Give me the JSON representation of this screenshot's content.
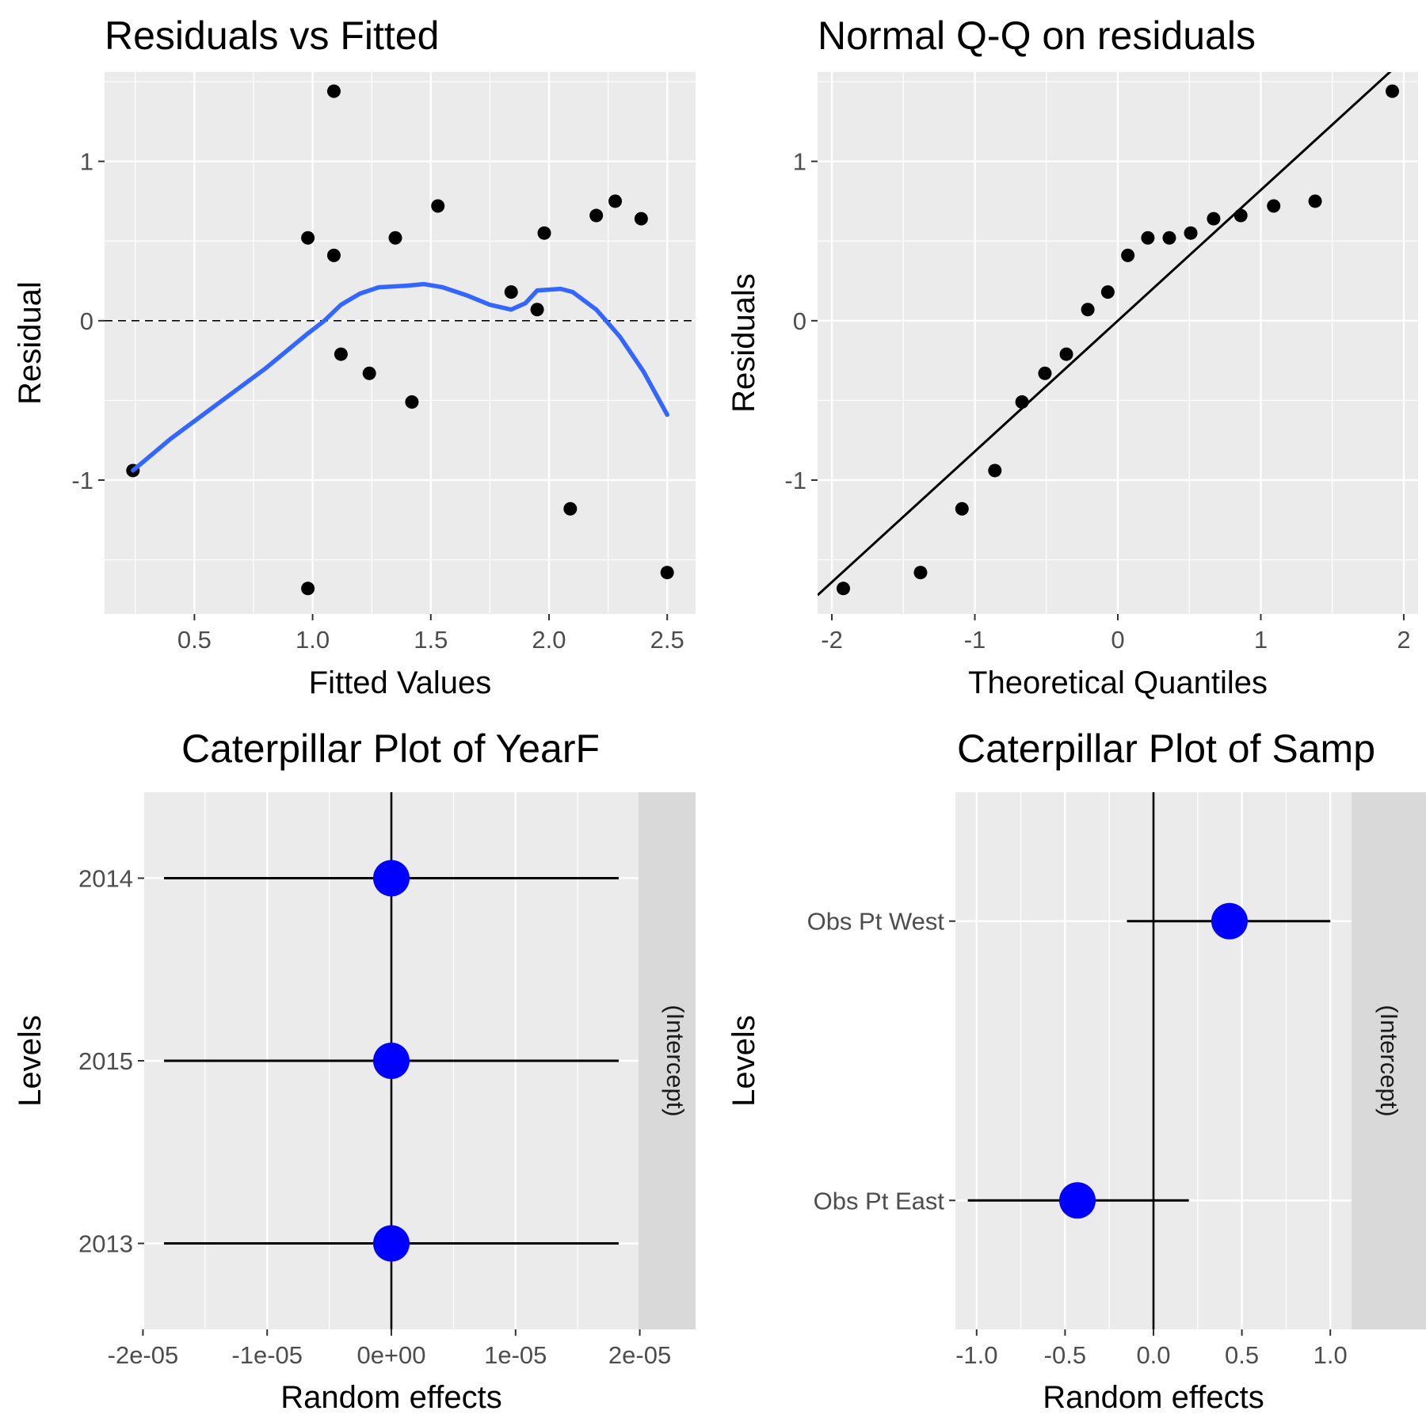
{
  "chart_data": [
    {
      "type": "scatter",
      "title": "Residuals vs Fitted",
      "xlabel": "Fitted Values",
      "ylabel": "Residual",
      "xlim": [
        0.12,
        2.62
      ],
      "ylim": [
        -1.84,
        1.56
      ],
      "xticks": [
        0.5,
        1.0,
        1.5,
        2.0,
        2.5
      ],
      "xtick_labels": [
        "0.5",
        "1.0",
        "1.5",
        "2.0",
        "2.5"
      ],
      "yticks": [
        -1,
        0,
        1
      ],
      "ytick_labels": [
        "-1",
        "0",
        "1"
      ],
      "grid": true,
      "reference_line": {
        "y": 0,
        "style": "dashed",
        "color": "#000000"
      },
      "point_color": "#000000",
      "smooth_color": "#3366ff",
      "points": [
        {
          "x": 0.24,
          "y": -0.94
        },
        {
          "x": 0.98,
          "y": 0.52
        },
        {
          "x": 0.98,
          "y": -1.68
        },
        {
          "x": 1.09,
          "y": 1.44
        },
        {
          "x": 1.09,
          "y": 0.41
        },
        {
          "x": 1.12,
          "y": -0.21
        },
        {
          "x": 1.24,
          "y": -0.33
        },
        {
          "x": 1.35,
          "y": 0.52
        },
        {
          "x": 1.42,
          "y": -0.51
        },
        {
          "x": 1.53,
          "y": 0.72
        },
        {
          "x": 1.84,
          "y": 0.18
        },
        {
          "x": 1.95,
          "y": 0.07
        },
        {
          "x": 1.98,
          "y": 0.55
        },
        {
          "x": 2.09,
          "y": -1.18
        },
        {
          "x": 2.2,
          "y": 0.66
        },
        {
          "x": 2.28,
          "y": 0.75
        },
        {
          "x": 2.39,
          "y": 0.64
        },
        {
          "x": 2.5,
          "y": -1.58
        }
      ],
      "smooth": [
        {
          "x": 0.24,
          "y": -0.94
        },
        {
          "x": 0.4,
          "y": -0.74
        },
        {
          "x": 0.6,
          "y": -0.52
        },
        {
          "x": 0.8,
          "y": -0.3
        },
        {
          "x": 0.98,
          "y": -0.08
        },
        {
          "x": 1.05,
          "y": 0.0
        },
        {
          "x": 1.12,
          "y": 0.1
        },
        {
          "x": 1.2,
          "y": 0.17
        },
        {
          "x": 1.28,
          "y": 0.21
        },
        {
          "x": 1.4,
          "y": 0.22
        },
        {
          "x": 1.47,
          "y": 0.23
        },
        {
          "x": 1.55,
          "y": 0.21
        },
        {
          "x": 1.65,
          "y": 0.16
        },
        {
          "x": 1.75,
          "y": 0.1
        },
        {
          "x": 1.84,
          "y": 0.07
        },
        {
          "x": 1.9,
          "y": 0.11
        },
        {
          "x": 1.95,
          "y": 0.19
        },
        {
          "x": 2.05,
          "y": 0.2
        },
        {
          "x": 2.1,
          "y": 0.18
        },
        {
          "x": 2.2,
          "y": 0.07
        },
        {
          "x": 2.3,
          "y": -0.1
        },
        {
          "x": 2.4,
          "y": -0.32
        },
        {
          "x": 2.5,
          "y": -0.59
        }
      ]
    },
    {
      "type": "scatter",
      "title": "Normal Q-Q on residuals",
      "xlabel": "Theoretical Quantiles",
      "ylabel": "Residuals",
      "xlim": [
        -2.1,
        2.1
      ],
      "ylim": [
        -1.84,
        1.56
      ],
      "xticks": [
        -2,
        -1,
        0,
        1,
        2
      ],
      "xtick_labels": [
        "-2",
        "-1",
        "0",
        "1",
        "2"
      ],
      "yticks": [
        -1,
        0,
        1
      ],
      "ytick_labels": [
        "-1",
        "0",
        "1"
      ],
      "grid": true,
      "point_color": "#000000",
      "line": {
        "intercept": 0.0,
        "slope": 0.82,
        "color": "#000000"
      },
      "points": [
        {
          "x": -1.92,
          "y": -1.68
        },
        {
          "x": -1.38,
          "y": -1.58
        },
        {
          "x": -1.09,
          "y": -1.18
        },
        {
          "x": -0.86,
          "y": -0.94
        },
        {
          "x": -0.67,
          "y": -0.51
        },
        {
          "x": -0.51,
          "y": -0.33
        },
        {
          "x": -0.36,
          "y": -0.21
        },
        {
          "x": -0.21,
          "y": 0.07
        },
        {
          "x": -0.07,
          "y": 0.18
        },
        {
          "x": 0.07,
          "y": 0.41
        },
        {
          "x": 0.21,
          "y": 0.52
        },
        {
          "x": 0.36,
          "y": 0.52
        },
        {
          "x": 0.51,
          "y": 0.55
        },
        {
          "x": 0.67,
          "y": 0.64
        },
        {
          "x": 0.86,
          "y": 0.66
        },
        {
          "x": 1.09,
          "y": 0.72
        },
        {
          "x": 1.38,
          "y": 0.75
        },
        {
          "x": 1.92,
          "y": 1.44
        }
      ]
    },
    {
      "type": "scatter",
      "title": "Caterpillar Plot of  YearF",
      "xlabel": "Random effects",
      "ylabel": "Levels",
      "strip_label": "(Intercept)",
      "xlim": [
        -1.99e-05,
        1.99e-05
      ],
      "xticks": [
        -2e-05,
        -1e-05,
        0,
        1e-05,
        2e-05
      ],
      "xtick_labels": [
        "-2e-05",
        "-1e-05",
        "0e+00",
        "1e-05",
        "2e-05"
      ],
      "categories": [
        "2013",
        "2015",
        "2014"
      ],
      "grid": true,
      "reference_line": {
        "x": 0,
        "color": "#000000"
      },
      "point_color": "#0000ff",
      "points": [
        {
          "level": "2013",
          "x": 0,
          "lo": -1.83e-05,
          "hi": 1.83e-05
        },
        {
          "level": "2015",
          "x": 0,
          "lo": -1.83e-05,
          "hi": 1.83e-05
        },
        {
          "level": "2014",
          "x": 0,
          "lo": -1.83e-05,
          "hi": 1.83e-05
        }
      ]
    },
    {
      "type": "scatter",
      "title": "Caterpillar Plot of  Samp",
      "xlabel": "Random effects",
      "ylabel": "Levels",
      "strip_label": "(Intercept)",
      "xlim": [
        -1.12,
        1.12
      ],
      "xticks": [
        -1.0,
        -0.5,
        0.0,
        0.5,
        1.0
      ],
      "xtick_labels": [
        "-1.0",
        "-0.5",
        "0.0",
        "0.5",
        "1.0"
      ],
      "categories": [
        "Obs Pt East",
        "Obs Pt West"
      ],
      "grid": true,
      "reference_line": {
        "x": 0,
        "color": "#000000"
      },
      "point_color": "#0000ff",
      "points": [
        {
          "level": "Obs Pt East",
          "x": -0.43,
          "lo": -1.05,
          "hi": 0.2
        },
        {
          "level": "Obs Pt West",
          "x": 0.43,
          "lo": -0.15,
          "hi": 1.0
        }
      ]
    }
  ]
}
